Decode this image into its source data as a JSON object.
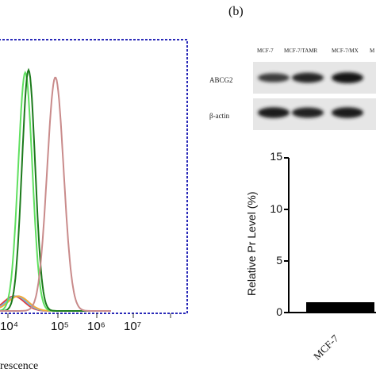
{
  "panel_b": {
    "label": "(b)"
  },
  "blot": {
    "lanes": [
      "MCF-7",
      "MCF-7/TAMR",
      "MCF-7/MX",
      "M"
    ],
    "rows": [
      {
        "name": "ABCG2",
        "band_intensity": [
          0.55,
          0.8,
          0.95
        ]
      },
      {
        "name": "β-actin",
        "band_intensity": [
          0.9,
          0.85,
          0.9
        ]
      }
    ]
  },
  "chart_data": [
    {
      "type": "line",
      "panel": "a",
      "xscale": "log",
      "xlim": [
        1000,
        100000000
      ],
      "x_tick_labels": [
        "10⁴",
        "10⁵",
        "10⁶",
        "10⁷"
      ],
      "xlabel_visible": "rescence",
      "series": [
        {
          "color": "#e23b3b",
          "peak_log_x": 3.0
        },
        {
          "color": "#6fb6e6",
          "peak_log_x": 3.05
        },
        {
          "color": "#f2a93b",
          "peak_log_x": 3.1
        },
        {
          "color": "#5fe05f",
          "peak_log_x": 4.42
        },
        {
          "color": "#1b7a1b",
          "peak_log_x": 4.5
        },
        {
          "color": "#c98b8b",
          "peak_log_x": 5.15
        }
      ]
    },
    {
      "type": "bar",
      "panel": "b",
      "categories": [
        "MCF-7"
      ],
      "values": [
        1
      ],
      "ylabel": "Relative Pr Level (%)",
      "ylim": [
        0,
        15
      ],
      "y_ticks": [
        "0",
        "5",
        "10",
        "15"
      ],
      "bar_color": "#000000"
    }
  ]
}
